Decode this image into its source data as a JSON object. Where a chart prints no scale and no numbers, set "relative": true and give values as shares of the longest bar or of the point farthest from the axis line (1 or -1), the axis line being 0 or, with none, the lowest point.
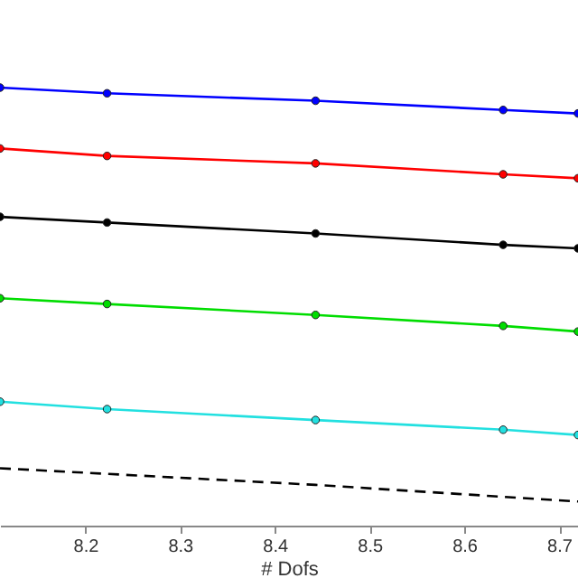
{
  "chart_data": {
    "type": "line",
    "relative": true,
    "xlabel": "# Dofs",
    "x": [
      8.11,
      8.223,
      8.443,
      8.641,
      8.72
    ],
    "xlim": [
      8.11,
      8.72
    ],
    "xticks": [
      8.2,
      8.3,
      8.4,
      8.5,
      8.6,
      8.7
    ],
    "grid": false,
    "tick_labels": "x",
    "series": [
      {
        "color": "#0000ff",
        "marker": "circle",
        "line_style": "solid",
        "values": [
          1,
          0.987,
          0.97,
          0.949,
          0.941
        ]
      },
      {
        "color": "#ff0000",
        "marker": "circle",
        "line_style": "solid",
        "values": [
          0.861,
          0.844,
          0.827,
          0.802,
          0.793
        ]
      },
      {
        "color": "#000000",
        "marker": "circle",
        "line_style": "solid",
        "values": [
          0.705,
          0.692,
          0.667,
          0.641,
          0.633
        ]
      },
      {
        "color": "#00dd00",
        "marker": "circle",
        "line_style": "solid",
        "values": [
          0.519,
          0.506,
          0.481,
          0.456,
          0.443
        ]
      },
      {
        "color": "#22e0e0",
        "marker": "circle",
        "line_style": "solid",
        "values": [
          0.283,
          0.266,
          0.241,
          0.219,
          0.207
        ]
      },
      {
        "color": "#000000",
        "marker": "none",
        "line_style": "dashed",
        "x": [
          8.11,
          8.443,
          8.72
        ],
        "values": [
          0.131,
          0.093,
          0.055
        ]
      }
    ]
  }
}
